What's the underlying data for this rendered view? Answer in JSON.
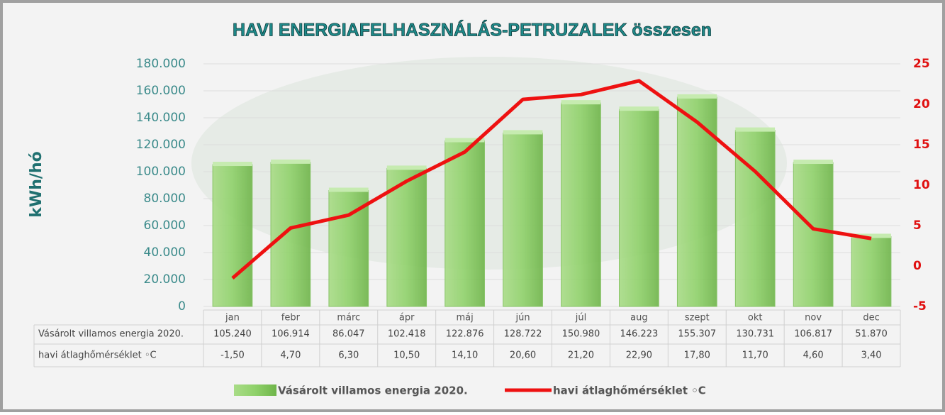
{
  "chart_data": {
    "type": "bar-line",
    "title": "HAVI ENERGIAFELHASZNÁLÁS-PETRUZALEK összesen",
    "ylabel": "kWh/hó",
    "categories": [
      "jan",
      "febr",
      "márc",
      "ápr",
      "máj",
      "jún",
      "júl",
      "aug",
      "szept",
      "okt",
      "nov",
      "dec"
    ],
    "series": [
      {
        "name": "Vásárolt villamos energia 2020.",
        "type": "bar",
        "color": "#8fd16a",
        "values": [
          105240,
          106914,
          86047,
          102418,
          122876,
          128722,
          150980,
          146223,
          155307,
          130731,
          106817,
          51870
        ],
        "value_labels": [
          "105.240",
          "106.914",
          "86.047",
          "102.418",
          "122.876",
          "128.722",
          "150.980",
          "146.223",
          "155.307",
          "130.731",
          "106.817",
          "51.870"
        ]
      },
      {
        "name": "havi átlaghőmérséklet ◦C",
        "type": "line",
        "axis": "y2",
        "color": "#ee1111",
        "values": [
          -1.5,
          4.7,
          6.3,
          10.5,
          14.1,
          20.6,
          21.2,
          22.9,
          17.8,
          11.7,
          4.6,
          3.4
        ],
        "value_labels": [
          "-1,50",
          "4,70",
          "6,30",
          "10,50",
          "14,10",
          "20,60",
          "21,20",
          "22,90",
          "17,80",
          "11,70",
          "4,60",
          "3,40"
        ]
      }
    ],
    "ylim": [
      0,
      180000
    ],
    "yticks": [
      0,
      {
        "value": 20000,
        "label": "20.000"
      },
      {
        "value": 40000,
        "label": "40.000"
      },
      {
        "value": 60000,
        "label": "60.000"
      },
      {
        "value": 80000,
        "label": "80.000"
      },
      {
        "value": 100000,
        "label": "100.000"
      },
      {
        "value": 120000,
        "label": "120.000"
      },
      {
        "value": 140000,
        "label": "140.000"
      },
      {
        "value": 160000,
        "label": "160.000"
      },
      {
        "value": 180000,
        "label": "180.000"
      }
    ],
    "y2lim": [
      -5,
      25
    ],
    "y2ticks": [
      -5,
      0,
      5,
      10,
      15,
      20,
      25
    ],
    "grid": true
  }
}
